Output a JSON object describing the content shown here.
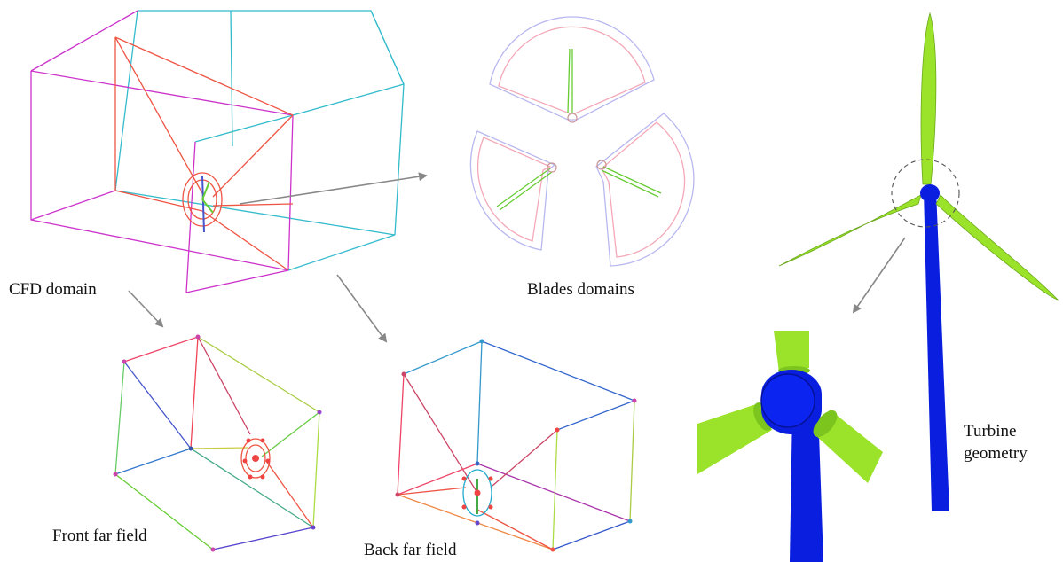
{
  "labels": {
    "cfd_domain": "CFD domain",
    "blades_domains": "Blades domains",
    "front_far_field": "Front far field",
    "back_far_field": "Back far field",
    "turbine_geometry_line1": "Turbine",
    "turbine_geometry_line2": "geometry"
  },
  "colors": {
    "magenta_edge": "#cc33cc",
    "cyan_edge": "#33bbcc",
    "red_edge": "#ee4444",
    "green_edge": "#66cc33",
    "blue_edge": "#3355cc",
    "arrow": "#888888",
    "tower": "#0a1ee0",
    "blade": "#9be32a",
    "blade_pale_red": "#f4a8b8",
    "blade_pale_blue": "#b8b8f0"
  }
}
